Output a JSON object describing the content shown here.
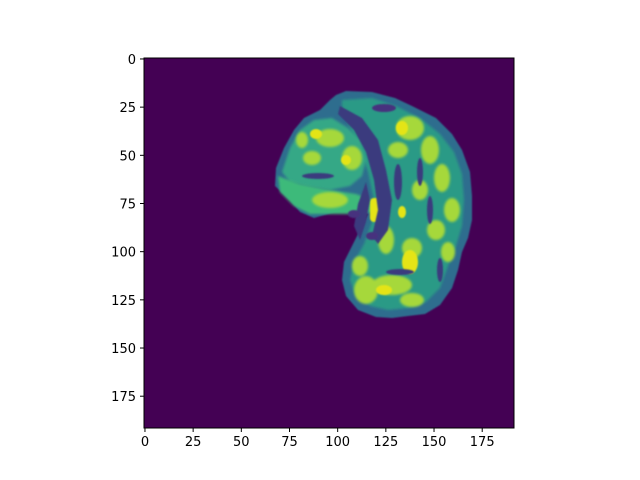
{
  "figure": {
    "colormap": "viridis",
    "background_color": "#440154",
    "accent_colors": [
      "#440154",
      "#3b528b",
      "#21918c",
      "#5ec962",
      "#fde725"
    ]
  },
  "x_axis": {
    "range": [
      -0.5,
      191.5
    ],
    "tick_labels": [
      "0",
      "25",
      "50",
      "75",
      "100",
      "125",
      "150",
      "175"
    ]
  },
  "y_axis": {
    "range": [
      -0.5,
      191.5
    ],
    "inverted": true,
    "tick_labels": [
      "0",
      "25",
      "50",
      "75",
      "100",
      "125",
      "150",
      "175"
    ]
  }
}
